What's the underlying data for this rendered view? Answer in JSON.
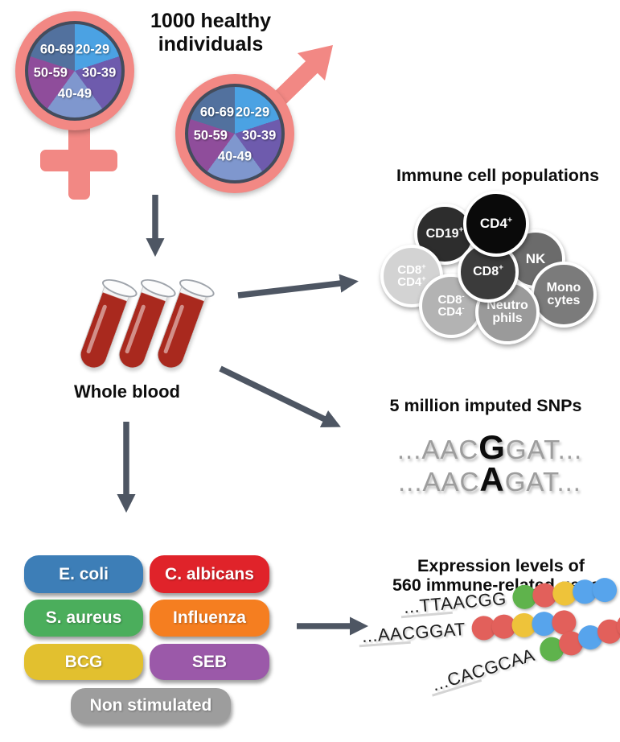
{
  "header": {
    "title": "1000 healthy individuals"
  },
  "cohort": {
    "female_symbol": "female",
    "male_symbol": "male",
    "symbol_color": "#f28884",
    "age_groups": [
      {
        "label": "20-29",
        "color": "#4ba2e3"
      },
      {
        "label": "30-39",
        "color": "#6e5bad"
      },
      {
        "label": "40-49",
        "color": "#7f97ce"
      },
      {
        "label": "50-59",
        "color": "#8f4d9b"
      },
      {
        "label": "60-69",
        "color": "#52719e"
      }
    ]
  },
  "whole_blood": {
    "label": "Whole blood",
    "tube_color": "#a9291e"
  },
  "immune_cells": {
    "title": "Immune cell populations",
    "cells": [
      {
        "id": "nk",
        "lines": [
          "NK"
        ],
        "color": "#6b6b6b"
      },
      {
        "id": "cd19-pos",
        "lines": [
          "CD19^+"
        ],
        "color": "#2d2d2d"
      },
      {
        "id": "cd8-pos-cd4-pos",
        "lines": [
          "CD8^+",
          "CD4^+"
        ],
        "color": "#d3d3d3"
      },
      {
        "id": "monocytes",
        "lines": [
          "Mono",
          "cytes"
        ],
        "color": "#7b7b7b"
      },
      {
        "id": "cd8-neg-cd4-neg",
        "lines": [
          "CD8^-",
          "CD4^-"
        ],
        "color": "#b3b3b3"
      },
      {
        "id": "neutrophils",
        "lines": [
          "Neutro",
          "phils"
        ],
        "color": "#9a9a9a"
      },
      {
        "id": "cd8-pos",
        "lines": [
          "CD8^+"
        ],
        "color": "#3b3b3b"
      },
      {
        "id": "cd4-pos",
        "lines": [
          "CD4^+"
        ],
        "color": "#0a0a0a"
      }
    ]
  },
  "snps": {
    "title": "5 million imputed SNPs",
    "sequences": [
      {
        "prefix": "...AAC",
        "variant": "G",
        "suffix": "GAT..."
      },
      {
        "prefix": "...AAC",
        "variant": "A",
        "suffix": "GAT..."
      }
    ]
  },
  "stimulations": {
    "items": [
      {
        "label": "E. coli",
        "color": "#3d7eb7"
      },
      {
        "label": "C. albicans",
        "color": "#e0232a"
      },
      {
        "label": "S. aureus",
        "color": "#4bae5c"
      },
      {
        "label": "Influenza",
        "color": "#f57e20"
      },
      {
        "label": "BCG",
        "color": "#e2c02f"
      },
      {
        "label": "SEB",
        "color": "#9b59a9"
      },
      {
        "label": "Non stimulated",
        "color": "#9d9d9d"
      }
    ]
  },
  "expression": {
    "title_lines": [
      "Expression levels of",
      "560 immune-related genes"
    ],
    "rows": [
      {
        "sequence": "...TTAACGG",
        "dots": [
          "green",
          "red",
          "yellow",
          "blue",
          "blue"
        ]
      },
      {
        "sequence": "...AACGGAT",
        "dots": [
          "red",
          "red",
          "yellow",
          "blue",
          "red"
        ]
      },
      {
        "sequence": "...CACGCAA",
        "dots": [
          "green",
          "red",
          "blue",
          "red",
          "red"
        ]
      }
    ],
    "dot_colors": {
      "green": "#5fb34c",
      "red": "#e2605b",
      "yellow": "#eec33a",
      "blue": "#57a4ec"
    }
  },
  "arrows": {
    "color": "#4e5663"
  }
}
